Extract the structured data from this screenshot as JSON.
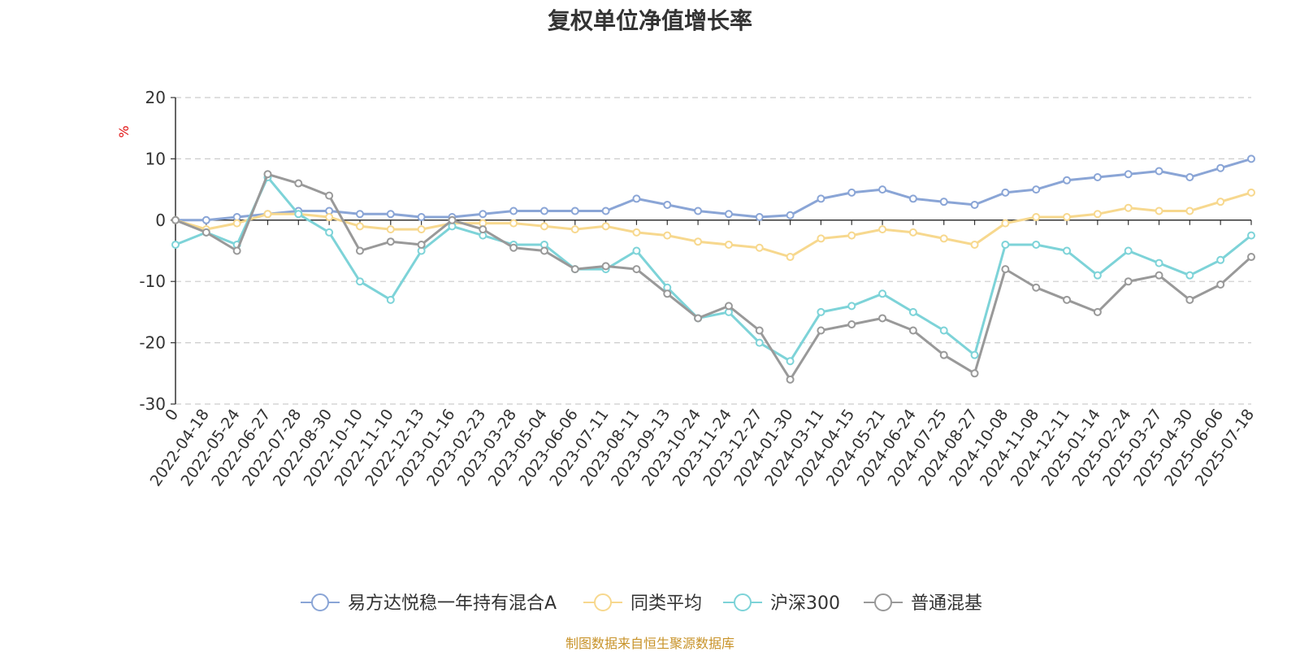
{
  "title": "复权单位净值增长率",
  "source": "制图数据来自恒生聚源数据库",
  "chart_data": {
    "type": "line",
    "title": "复权单位净值增长率",
    "ylabel": "%",
    "ylim": [
      -30,
      20
    ],
    "yticks": [
      20,
      10,
      0,
      -10,
      -20,
      -30
    ],
    "grid": true,
    "legend_position": "bottom",
    "x_tick_labels": [
      "0",
      "2022-04-18",
      "2022-05-24",
      "2022-06-27",
      "2022-07-28",
      "2022-08-30",
      "2022-10-10",
      "2022-11-10",
      "2022-12-13",
      "2023-01-16",
      "2023-02-23",
      "2023-03-28",
      "2023-05-04",
      "2023-06-06",
      "2023-07-11",
      "2023-08-11",
      "2023-09-13",
      "2023-10-24",
      "2023-11-24",
      "2023-12-27",
      "2024-01-30",
      "2024-03-11",
      "2024-04-15",
      "2024-05-21",
      "2024-06-24",
      "2024-07-25",
      "2024-08-27",
      "2024-10-08",
      "2024-11-08",
      "2024-12-11",
      "2025-01-14",
      "2025-02-24",
      "2025-03-27",
      "2025-04-30",
      "2025-06-06",
      "2025-07-18"
    ],
    "x": [
      "0",
      "2022-04-18",
      "2022-05-24",
      "2022-06-27",
      "2022-07-28",
      "2022-08-30",
      "2022-10-10",
      "2022-11-10",
      "2022-12-13",
      "2023-01-16",
      "2023-02-23",
      "2023-03-28",
      "2023-05-04",
      "2023-06-06",
      "2023-07-11",
      "2023-08-11",
      "2023-09-13",
      "2023-10-24",
      "2023-11-24",
      "2023-12-27",
      "2024-01-30",
      "2024-03-11",
      "2024-04-15",
      "2024-05-21",
      "2024-06-24",
      "2024-07-25",
      "2024-08-27",
      "2024-10-08",
      "2024-11-08",
      "2024-12-11",
      "2025-01-14",
      "2025-02-24",
      "2025-03-27",
      "2025-04-30",
      "2025-06-06",
      "2025-07-18"
    ],
    "series": [
      {
        "name": "易方达悦稳一年持有混合A",
        "color": "#8aa5d6",
        "values": [
          0,
          0,
          0.5,
          1.0,
          1.5,
          1.5,
          1.0,
          1.0,
          0.5,
          0.5,
          1.0,
          1.5,
          1.5,
          1.5,
          1.5,
          3.5,
          2.5,
          1.5,
          1.0,
          0.5,
          0.8,
          3.5,
          4.5,
          5.0,
          3.5,
          3.0,
          2.5,
          4.5,
          5.0,
          6.5,
          7.0,
          7.5,
          8.0,
          7.0,
          8.5,
          10.0
        ]
      },
      {
        "name": "同类平均",
        "color": "#f7d88e",
        "values": [
          0,
          -1.5,
          -0.5,
          1.0,
          1.0,
          0.5,
          -1.0,
          -1.5,
          -1.5,
          -0.5,
          -0.5,
          -0.5,
          -1.0,
          -1.5,
          -1.0,
          -2.0,
          -2.5,
          -3.5,
          -4.0,
          -4.5,
          -6.0,
          -3.0,
          -2.5,
          -1.5,
          -2.0,
          -3.0,
          -4.0,
          -0.5,
          0.5,
          0.5,
          1.0,
          2.0,
          1.5,
          1.5,
          3.0,
          4.5
        ]
      },
      {
        "name": "沪深300",
        "color": "#7dd3d8",
        "values": [
          -4.0,
          -2.0,
          -4.0,
          7.0,
          1.0,
          -2.0,
          -10.0,
          -13.0,
          -5.0,
          -1.0,
          -2.5,
          -4.0,
          -4.0,
          -8.0,
          -8.0,
          -5.0,
          -11.0,
          -16.0,
          -15.0,
          -20.0,
          -23.0,
          -15.0,
          -14.0,
          -12.0,
          -15.0,
          -18.0,
          -22.0,
          -4.0,
          -4.0,
          -5.0,
          -9.0,
          -5.0,
          -7.0,
          -9.0,
          -6.5,
          -2.5
        ]
      },
      {
        "name": "普通混基",
        "color": "#999999",
        "values": [
          0,
          -2.0,
          -5.0,
          7.5,
          6.0,
          4.0,
          -5.0,
          -3.5,
          -4.0,
          0,
          -1.5,
          -4.5,
          -5.0,
          -8.0,
          -7.5,
          -8.0,
          -12.0,
          -16.0,
          -14.0,
          -18.0,
          -26.0,
          -18.0,
          -17.0,
          -16.0,
          -18.0,
          -22.0,
          -25.0,
          -8.0,
          -11.0,
          -13.0,
          -15.0,
          -10.0,
          -9.0,
          -13.0,
          -10.5,
          -6.0
        ]
      }
    ]
  }
}
